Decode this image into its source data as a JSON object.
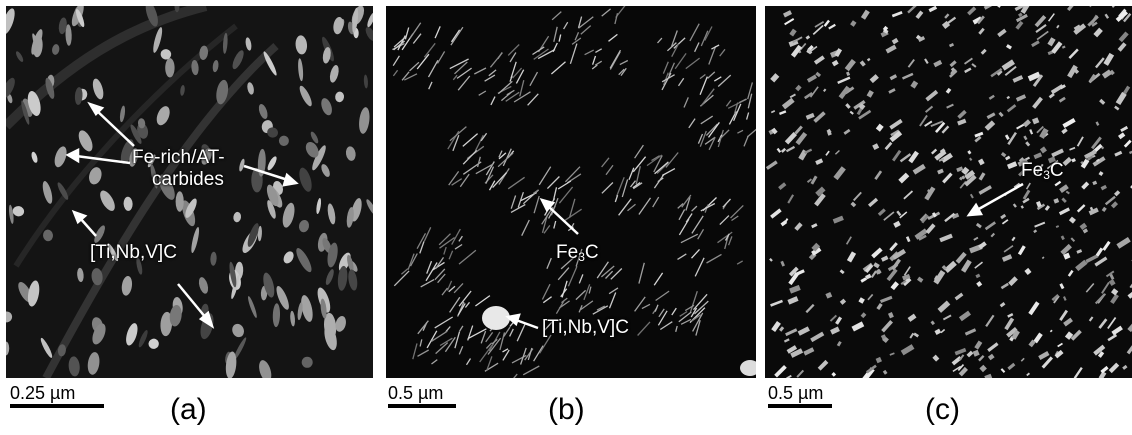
{
  "panels": {
    "a": {
      "label_1_line1": "Fe-rich/AT-",
      "label_1_line2": "carbides",
      "label_2": "[Ti,Nb,V]C",
      "scale": "0.25 µm",
      "caption": "(a)"
    },
    "b": {
      "label_1_main": "Fe",
      "label_1_sub": "3",
      "label_1_end": "C",
      "label_2": "[Ti,Nb,V]C",
      "scale": "0.5 µm",
      "caption": "(b)"
    },
    "c": {
      "label_1_main": "Fe",
      "label_1_sub": "3",
      "label_1_end": "C",
      "scale": "0.5 µm",
      "caption": "(c)"
    }
  }
}
